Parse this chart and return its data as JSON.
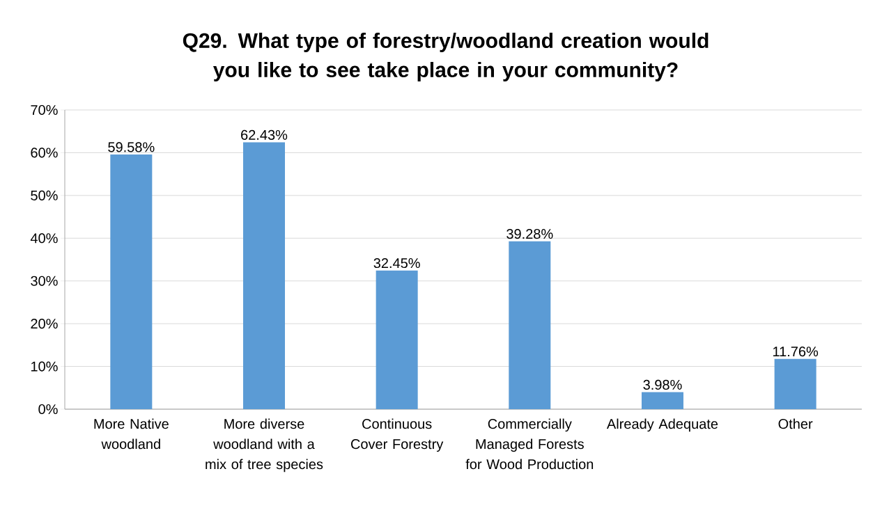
{
  "chart_data": {
    "type": "bar",
    "title": "Q29. What type of forestry/woodland creation would you like to see take place in your community?",
    "categories": [
      "More Native woodland",
      "More diverse woodland with a mix of tree species",
      "Continuous Cover Forestry",
      "Commercially Managed Forests for Wood Production",
      "Already Adequate",
      "Other"
    ],
    "values": [
      59.58,
      62.43,
      32.45,
      39.28,
      3.98,
      11.76
    ],
    "value_labels": [
      "59.58%",
      "62.43%",
      "32.45%",
      "39.28%",
      "3.98%",
      "11.76%"
    ],
    "color": "#5b9bd5",
    "ylim": [
      0,
      70
    ],
    "yticks": [
      {
        "value": 0,
        "label": "0%"
      },
      {
        "value": 10,
        "label": "10%"
      },
      {
        "value": 20,
        "label": "20%"
      },
      {
        "value": 30,
        "label": "30%"
      },
      {
        "value": 40,
        "label": "40%"
      },
      {
        "value": 50,
        "label": "50%"
      },
      {
        "value": 60,
        "label": "60%"
      },
      {
        "value": 70,
        "label": "70%"
      }
    ],
    "grid": "y"
  }
}
